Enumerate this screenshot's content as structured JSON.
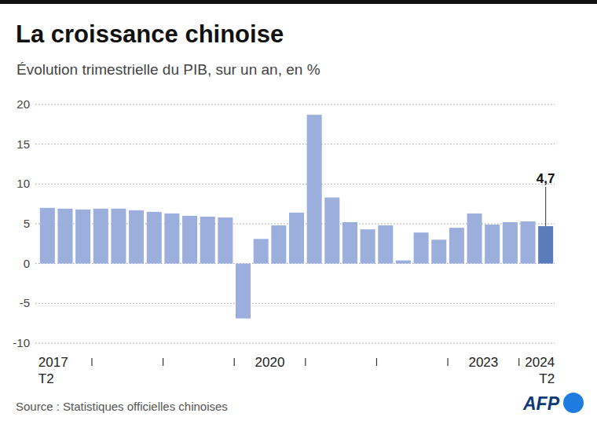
{
  "chart_data": {
    "type": "bar",
    "title": "La croissance chinoise",
    "subtitle": "Évolution trimestrielle du PIB, sur un an, en %",
    "source": "Source : Statistiques officielles chinoises",
    "logo": "AFP",
    "categories": [
      "2017 T2",
      null,
      null,
      null,
      null,
      null,
      null,
      null,
      null,
      null,
      null,
      "2020",
      null,
      null,
      null,
      null,
      null,
      null,
      null,
      null,
      null,
      null,
      null,
      "2023",
      null,
      null,
      null,
      null,
      "2024 T2"
    ],
    "values": [
      7.0,
      6.9,
      6.8,
      6.9,
      6.9,
      6.7,
      6.5,
      6.3,
      6.0,
      5.9,
      5.8,
      -6.9,
      3.1,
      4.8,
      6.4,
      18.7,
      8.3,
      5.2,
      4.3,
      4.8,
      0.4,
      3.9,
      3.0,
      4.5,
      6.3,
      4.9,
      5.2,
      5.3,
      4.7
    ],
    "value_labels": [
      null,
      null,
      null,
      null,
      null,
      null,
      null,
      null,
      null,
      null,
      null,
      null,
      null,
      null,
      null,
      null,
      null,
      null,
      null,
      null,
      null,
      null,
      null,
      null,
      null,
      null,
      null,
      null,
      "4,7"
    ],
    "colors": [
      "#9cafdc",
      "#9cafdc",
      "#9cafdc",
      "#9cafdc",
      "#9cafdc",
      "#9cafdc",
      "#9cafdc",
      "#9cafdc",
      "#9cafdc",
      "#9cafdc",
      "#9cafdc",
      "#9cafdc",
      "#9cafdc",
      "#9cafdc",
      "#9cafdc",
      "#9cafdc",
      "#9cafdc",
      "#9cafdc",
      "#9cafdc",
      "#9cafdc",
      "#9cafdc",
      "#9cafdc",
      "#9cafdc",
      "#9cafdc",
      "#9cafdc",
      "#9cafdc",
      "#9cafdc",
      "#9cafdc",
      "#5a7cb8"
    ],
    "ylim": [
      -10,
      20
    ],
    "yticks": [
      -10,
      -5,
      0,
      5,
      10,
      15,
      20
    ],
    "grid": true
  }
}
